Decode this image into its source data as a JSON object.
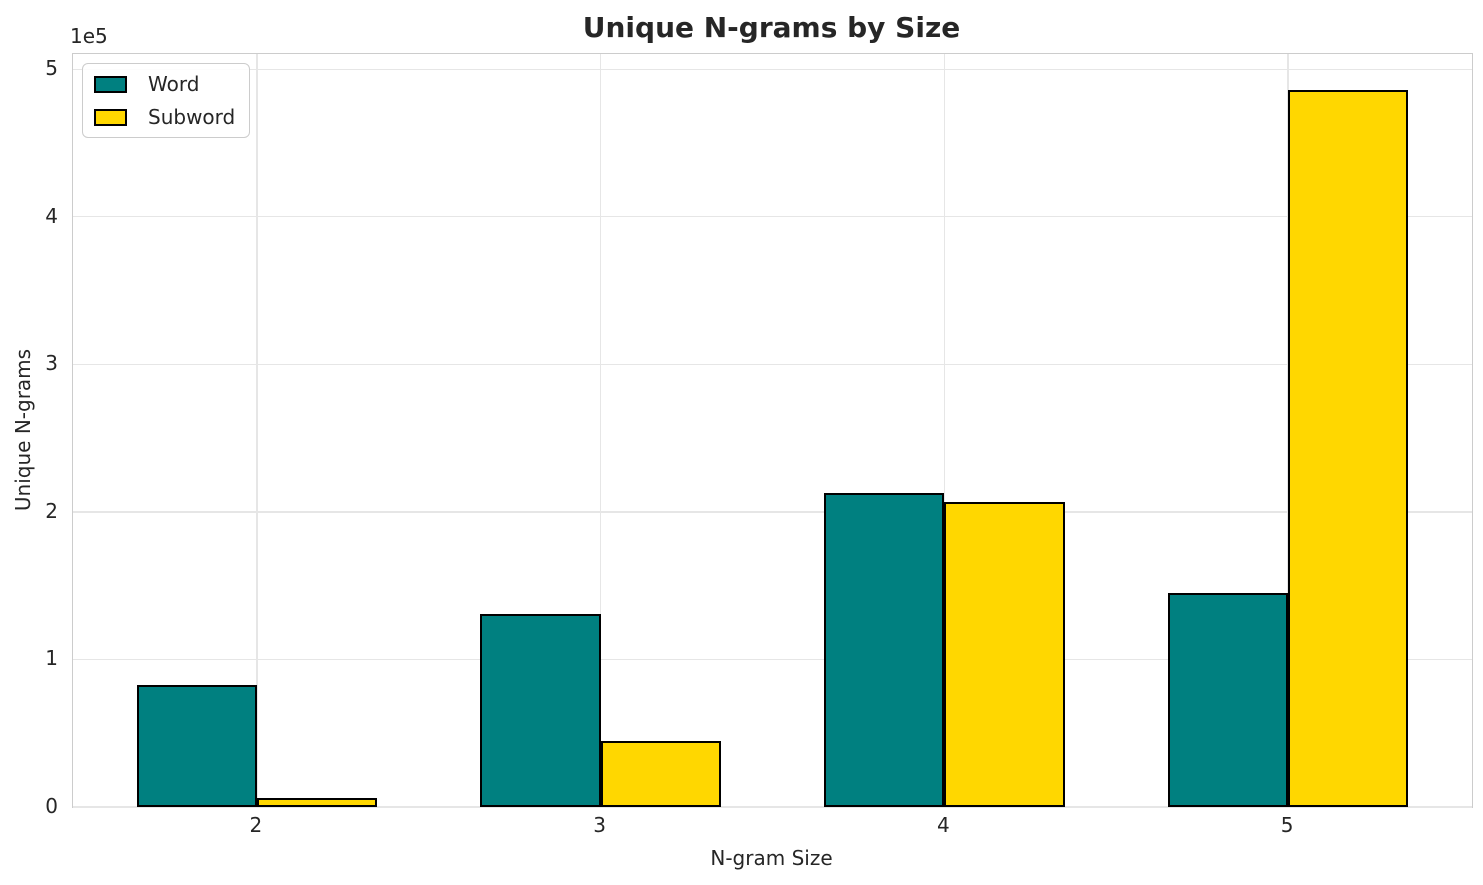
{
  "chart_data": {
    "type": "bar",
    "title": "Unique N-grams by Size",
    "xlabel": "N-gram Size",
    "ylabel": "Unique N-grams",
    "offset_text": "1e5",
    "categories": [
      2,
      3,
      4,
      5
    ],
    "series": [
      {
        "name": "Word",
        "color": "#008080",
        "values": [
          83000,
          131000,
          213000,
          145000
        ]
      },
      {
        "name": "Subword",
        "color": "#FFD700",
        "values": [
          6000,
          45000,
          207000,
          486000
        ]
      }
    ],
    "bar_width": 0.35,
    "bar_edge_color": "#000000",
    "xlim": [
      1.465,
      5.535
    ],
    "ylim": [
      0,
      510300
    ],
    "yticks": {
      "values": [
        0,
        100000,
        200000,
        300000,
        400000,
        500000
      ],
      "labels": [
        "0",
        "1",
        "2",
        "3",
        "4",
        "5"
      ]
    },
    "grid": true,
    "legend_position": "upper-left",
    "colors": {
      "grid": "#e6e6e6",
      "spine": "#cccccc",
      "text": "#262626",
      "background": "#ffffff"
    }
  }
}
